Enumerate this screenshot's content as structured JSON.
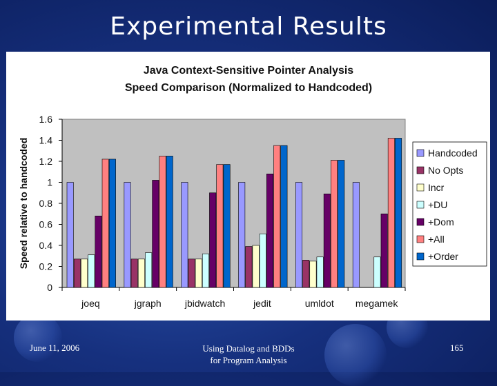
{
  "slide": {
    "title": "Experimental Results",
    "footer_date": "June 11, 2006",
    "footer_mid_line1": "Using Datalog and BDDs",
    "footer_mid_line2": "for Program Analysis",
    "page_number": "165"
  },
  "chart_data": {
    "type": "bar",
    "title_line1": "Java Context-Sensitive Pointer Analysis",
    "title_line2": "Speed Comparison (Normalized to Handcoded)",
    "ylabel": "Speed relative to handcoded",
    "xlabel": "",
    "ylim": [
      0,
      1.6
    ],
    "yticks": [
      "0",
      "0.2",
      "0.4",
      "0.6",
      "0.8",
      "1",
      "1.2",
      "1.4",
      "1.6"
    ],
    "grid": false,
    "legend_position": "right",
    "categories": [
      "joeq",
      "jgraph",
      "jbidwatch",
      "jedit",
      "umldot",
      "megamek"
    ],
    "series": [
      {
        "name": "Handcoded",
        "color": "#9999ff",
        "values": [
          1,
          1,
          1,
          1,
          1,
          1
        ]
      },
      {
        "name": "No Opts",
        "color": "#993366",
        "values": [
          0.27,
          0.27,
          0.27,
          0.39,
          0.26,
          null
        ]
      },
      {
        "name": "Incr",
        "color": "#ffffcc",
        "values": [
          0.27,
          0.27,
          0.27,
          0.4,
          0.25,
          null
        ]
      },
      {
        "name": "+DU",
        "color": "#ccffff",
        "values": [
          0.31,
          0.33,
          0.32,
          0.51,
          0.29,
          0.29
        ]
      },
      {
        "name": "+Dom",
        "color": "#660066",
        "values": [
          0.68,
          1.02,
          0.9,
          1.08,
          0.89,
          0.7
        ]
      },
      {
        "name": "+All",
        "color": "#ff8080",
        "values": [
          1.22,
          1.25,
          1.17,
          1.35,
          1.21,
          1.42
        ]
      },
      {
        "name": "+Order",
        "color": "#0066cc",
        "values": [
          1.22,
          1.25,
          1.17,
          1.35,
          1.21,
          1.42
        ]
      }
    ]
  }
}
